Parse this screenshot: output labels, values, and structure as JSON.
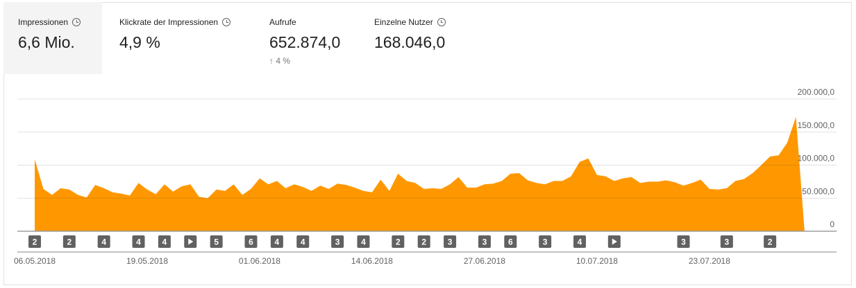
{
  "metrics": [
    {
      "label": "Impressionen",
      "value": "6,6 Mio.",
      "info_icon": "clock-icon",
      "selected": true
    },
    {
      "label": "Klickrate der Impressionen",
      "value": "4,9 %",
      "info_icon": "clock-icon"
    },
    {
      "label": "Aufrufe",
      "value": "652.874,0",
      "delta": "4 %",
      "delta_icon": "arrow-up-icon"
    },
    {
      "label": "Einzelne Nutzer",
      "value": "168.046,0",
      "info_icon": "clock-icon"
    }
  ],
  "colors": {
    "fill": "#ff9800",
    "marker": "#616161",
    "selected_tab": "#f4f4f4"
  },
  "chart_data": {
    "type": "area",
    "ylim": [
      0,
      200000
    ],
    "ytick_labels": [
      "0",
      "50.000,0",
      "100.000,0",
      "150.000,0",
      "200.000,0"
    ],
    "yticks": [
      0,
      50000,
      100000,
      150000,
      200000
    ],
    "xtick_labels": [
      "06.05.2018",
      "19.05.2018",
      "01.06.2018",
      "14.06.2018",
      "27.06.2018",
      "10.07.2018",
      "23.07.2018"
    ],
    "grid": true,
    "x": [
      "06.05",
      "07.05",
      "08.05",
      "09.05",
      "10.05",
      "11.05",
      "12.05",
      "13.05",
      "14.05",
      "15.05",
      "16.05",
      "17.05",
      "18.05",
      "19.05",
      "20.05",
      "21.05",
      "22.05",
      "23.05",
      "24.05",
      "25.05",
      "26.05",
      "27.05",
      "28.05",
      "29.05",
      "30.05",
      "31.05",
      "01.06",
      "02.06",
      "03.06",
      "04.06",
      "05.06",
      "06.06",
      "07.06",
      "08.06",
      "09.06",
      "10.06",
      "11.06",
      "12.06",
      "13.06",
      "14.06",
      "15.06",
      "16.06",
      "17.06",
      "18.06",
      "19.06",
      "20.06",
      "21.06",
      "22.06",
      "23.06",
      "24.06",
      "25.06",
      "26.06",
      "27.06",
      "28.06",
      "29.06",
      "30.06",
      "01.07",
      "02.07",
      "03.07",
      "04.07",
      "05.07",
      "06.07",
      "07.07",
      "08.07",
      "09.07",
      "10.07",
      "11.07",
      "12.07",
      "13.07",
      "14.07",
      "15.07",
      "16.07",
      "17.07",
      "18.07",
      "19.07",
      "20.07",
      "21.07",
      "22.07",
      "23.07",
      "24.07",
      "25.07",
      "26.07",
      "27.07",
      "28.07",
      "29.07",
      "30.07",
      "31.07",
      "01.08",
      "02.08",
      "03.08"
    ],
    "values": [
      109000,
      64000,
      55000,
      65000,
      63000,
      55000,
      51000,
      70000,
      65000,
      59000,
      57000,
      54000,
      73000,
      63000,
      56000,
      71000,
      60000,
      68000,
      71000,
      52000,
      50000,
      63000,
      61000,
      71000,
      55000,
      64000,
      80000,
      71000,
      76000,
      65000,
      71000,
      67000,
      61000,
      69000,
      64000,
      72000,
      70000,
      66000,
      61000,
      59000,
      78000,
      61000,
      87000,
      76000,
      73000,
      64000,
      65000,
      64000,
      71000,
      82000,
      66000,
      66000,
      71000,
      72000,
      76000,
      87000,
      88000,
      77000,
      73000,
      71000,
      76000,
      76000,
      83000,
      105000,
      110000,
      85000,
      83000,
      76000,
      80000,
      82000,
      73000,
      75000,
      75000,
      77000,
      74000,
      69000,
      73000,
      78000,
      64000,
      63000,
      65000,
      76000,
      79000,
      88000,
      100000,
      113000,
      115000,
      134000,
      173000,
      0
    ],
    "annotations": [
      {
        "date": "06.05",
        "label": "2"
      },
      {
        "date": "10.05",
        "label": "2"
      },
      {
        "date": "14.05",
        "label": "4"
      },
      {
        "date": "18.05",
        "label": "4"
      },
      {
        "date": "21.05",
        "label": "4"
      },
      {
        "date": "24.05",
        "label": "",
        "icon": "play-icon"
      },
      {
        "date": "27.05",
        "label": "5"
      },
      {
        "date": "31.05",
        "label": "6"
      },
      {
        "date": "03.06",
        "label": "4"
      },
      {
        "date": "06.06",
        "label": "4"
      },
      {
        "date": "10.06",
        "label": "3"
      },
      {
        "date": "13.06",
        "label": "4"
      },
      {
        "date": "17.06",
        "label": "2"
      },
      {
        "date": "20.06",
        "label": "2"
      },
      {
        "date": "23.06",
        "label": "3"
      },
      {
        "date": "27.06",
        "label": "3"
      },
      {
        "date": "30.06",
        "label": "6"
      },
      {
        "date": "04.07",
        "label": "3"
      },
      {
        "date": "08.07",
        "label": "4"
      },
      {
        "date": "12.07",
        "label": "",
        "icon": "play-icon"
      },
      {
        "date": "20.07",
        "label": "3"
      },
      {
        "date": "25.07",
        "label": "3"
      },
      {
        "date": "30.07",
        "label": "2"
      }
    ]
  }
}
